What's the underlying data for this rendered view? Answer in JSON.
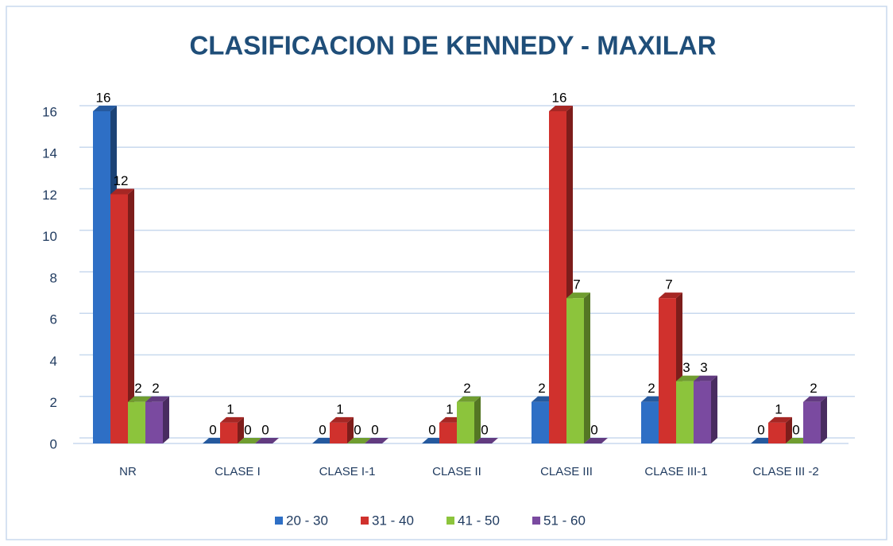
{
  "chart_data": {
    "type": "bar",
    "title": "CLASIFICACION DE KENNEDY - MAXILAR",
    "categories": [
      "NR",
      "CLASE I",
      "CLASE I-1",
      "CLASE II",
      "CLASE III",
      "CLASE III-1",
      "CLASE III -2"
    ],
    "series": [
      {
        "name": "20 - 30",
        "color": "#2e6fc5",
        "values": [
          16,
          0,
          0,
          0,
          2,
          2,
          0
        ]
      },
      {
        "name": "31 - 40",
        "color": "#d0312d",
        "values": [
          12,
          1,
          1,
          1,
          16,
          7,
          1
        ]
      },
      {
        "name": "41 - 50",
        "color": "#8cc43c",
        "values": [
          2,
          0,
          0,
          2,
          7,
          3,
          0
        ]
      },
      {
        "name": "51 - 60",
        "color": "#7a4aa0",
        "values": [
          2,
          0,
          0,
          0,
          0,
          3,
          2
        ]
      }
    ],
    "ylim": [
      0,
      16
    ],
    "yticks": [
      0,
      2,
      4,
      6,
      8,
      10,
      12,
      14,
      16
    ],
    "grid": true,
    "legend": "bottom"
  }
}
